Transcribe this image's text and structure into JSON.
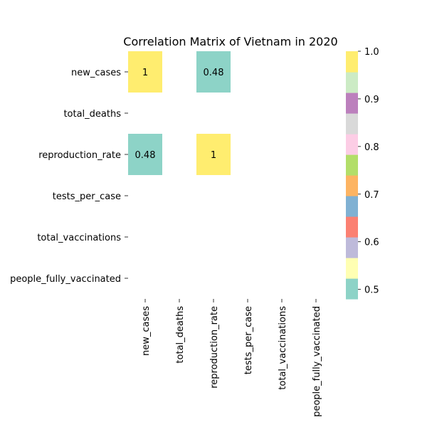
{
  "chart_data": {
    "type": "heatmap",
    "title": "Correlation Matrix of Vietnam in 2020",
    "xlabel": "",
    "ylabel": "",
    "rows": [
      "new_cases",
      "total_deaths",
      "reproduction_rate",
      "tests_per_case",
      "total_vaccinations",
      "people_fully_vaccinated"
    ],
    "columns": [
      "new_cases",
      "total_deaths",
      "reproduction_rate",
      "tests_per_case",
      "total_vaccinations",
      "people_fully_vaccinated"
    ],
    "values": [
      [
        1,
        null,
        0.48,
        null,
        null,
        null
      ],
      [
        null,
        null,
        null,
        null,
        null,
        null
      ],
      [
        0.48,
        null,
        1,
        null,
        null,
        null
      ],
      [
        null,
        null,
        null,
        null,
        null,
        null
      ],
      [
        null,
        null,
        null,
        null,
        null,
        null
      ],
      [
        null,
        null,
        null,
        null,
        null,
        null
      ]
    ],
    "cell_labels": [
      [
        "1",
        "",
        "0.48",
        "",
        "",
        ""
      ],
      [
        "",
        "",
        "",
        "",
        "",
        ""
      ],
      [
        "0.48",
        "",
        "1",
        "",
        "",
        ""
      ],
      [
        "",
        "",
        "",
        "",
        "",
        ""
      ],
      [
        "",
        "",
        "",
        "",
        "",
        ""
      ],
      [
        "",
        "",
        "",
        "",
        "",
        ""
      ]
    ],
    "colorbar": {
      "colormap": "Set3",
      "range": [
        0.48,
        1.0
      ],
      "ticks": [
        0.5,
        0.6,
        0.7,
        0.8,
        0.9,
        1.0
      ],
      "tick_labels": [
        "0.5",
        "0.6",
        "0.7",
        "0.8",
        "0.9",
        "1.0"
      ],
      "colors": [
        "#8dd3c7",
        "#ffffb3",
        "#bebada",
        "#fb8072",
        "#80b1d3",
        "#fdb462",
        "#b3de69",
        "#fccde5",
        "#d9d9d9",
        "#bc80bd",
        "#ccebc5",
        "#ffed6f"
      ]
    },
    "grid": false,
    "legend": "colorbar-right"
  }
}
